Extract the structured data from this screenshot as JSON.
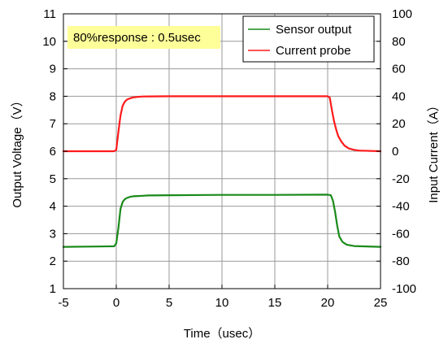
{
  "chart_data": {
    "type": "line",
    "xlabel": "Time（usec）",
    "ylabel": "Output Voltage（V）",
    "y2label": "Input Current（A）",
    "xlim": [
      -5,
      25
    ],
    "ylim": [
      1,
      11
    ],
    "y2lim": [
      -100,
      100
    ],
    "x_ticks": [
      "-5",
      "0",
      "5",
      "10",
      "15",
      "20",
      "25"
    ],
    "y_ticks": [
      "1",
      "2",
      "3",
      "4",
      "5",
      "6",
      "7",
      "8",
      "9",
      "10",
      "11"
    ],
    "y2_ticks": [
      "-100",
      "-80",
      "-60",
      "-40",
      "-20",
      "0",
      "20",
      "40",
      "60",
      "80",
      "100"
    ],
    "grid": true,
    "legend_position": "top-right",
    "annotation": "80%response : 0.5usec",
    "colors": {
      "sensor": "#1a8a1a",
      "current": "#ff1a1a",
      "annotation_bg": "#ffff99",
      "grid": "#999999"
    },
    "series": [
      {
        "name": "Sensor output",
        "axis": "left",
        "x": [
          -5,
          -0.2,
          0,
          0.2,
          0.4,
          0.6,
          0.8,
          1.0,
          1.3,
          1.6,
          2.0,
          2.5,
          3,
          5,
          10,
          15,
          20,
          20.3,
          20.5,
          20.7,
          20.9,
          21.1,
          21.4,
          21.8,
          22.5,
          25
        ],
        "y": [
          2.52,
          2.54,
          2.65,
          3.2,
          3.9,
          4.15,
          4.25,
          4.3,
          4.34,
          4.36,
          4.37,
          4.38,
          4.39,
          4.4,
          4.41,
          4.41,
          4.42,
          4.4,
          4.2,
          3.8,
          3.3,
          2.9,
          2.7,
          2.6,
          2.55,
          2.52
        ]
      },
      {
        "name": "Current probe",
        "axis": "right",
        "x": [
          -5,
          -0.2,
          0,
          0.2,
          0.4,
          0.6,
          0.8,
          1.0,
          1.3,
          1.6,
          2.0,
          2.5,
          3,
          5,
          10,
          15,
          20,
          20.2,
          20.4,
          20.6,
          20.8,
          21.0,
          21.3,
          21.6,
          22.0,
          22.5,
          23,
          25
        ],
        "y": [
          0,
          0,
          1,
          14,
          26,
          33,
          36,
          37.5,
          38.5,
          39.2,
          39.5,
          39.8,
          39.9,
          40,
          40,
          40,
          40,
          39,
          30,
          22,
          16,
          11,
          7,
          4,
          2,
          1,
          0.5,
          0
        ]
      }
    ]
  }
}
